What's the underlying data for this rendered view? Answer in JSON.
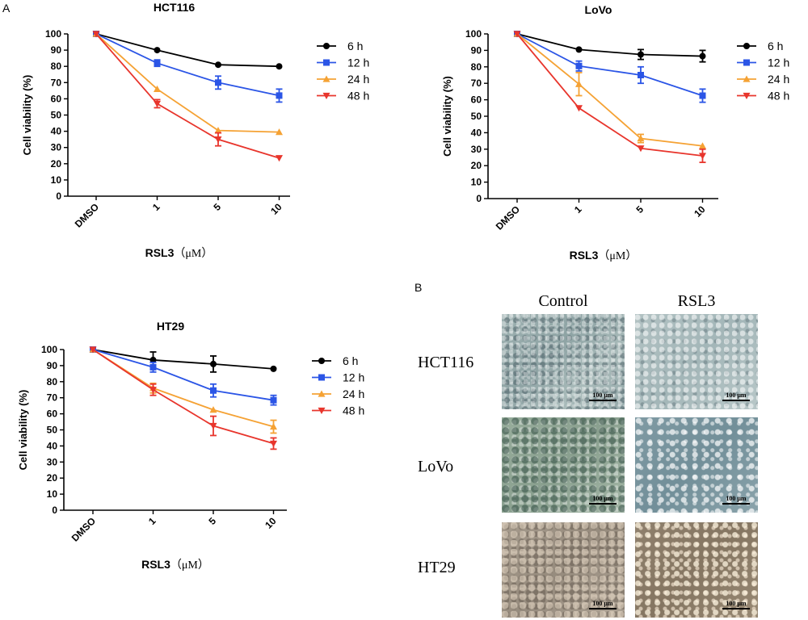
{
  "panel_labels": {
    "a": "A",
    "b": "B"
  },
  "chart_data": [
    {
      "type": "line",
      "title": "HCT116",
      "ylabel": "Cell viability (%)",
      "xlabel": "RSL3",
      "xlabel_unit": "（μM）",
      "categories": [
        "DMSO",
        "1",
        "5",
        "10"
      ],
      "ylim": [
        0,
        100
      ],
      "yticks": [
        0,
        10,
        20,
        30,
        40,
        50,
        60,
        70,
        80,
        90,
        100
      ],
      "series": [
        {
          "name": "6 h",
          "marker": "circle",
          "color": "#000000",
          "values": [
            100,
            90,
            81,
            80
          ],
          "errors": [
            0,
            0,
            0,
            0
          ]
        },
        {
          "name": "12 h",
          "marker": "square",
          "color": "#2b55e6",
          "values": [
            100,
            82,
            70,
            62
          ],
          "errors": [
            0,
            2,
            4,
            4
          ]
        },
        {
          "name": "24 h",
          "marker": "triangle",
          "color": "#f5a234",
          "values": [
            100,
            66,
            40.5,
            39.5
          ],
          "errors": [
            0,
            0,
            0,
            0
          ]
        },
        {
          "name": "48 h",
          "marker": "tri-down",
          "color": "#e8352c",
          "values": [
            100,
            57,
            35,
            23.5
          ],
          "errors": [
            0,
            2.5,
            4,
            0
          ]
        }
      ]
    },
    {
      "type": "line",
      "title": "LoVo",
      "ylabel": "Cell viability (%)",
      "xlabel": "RSL3",
      "xlabel_unit": "（μM）",
      "categories": [
        "DMSO",
        "1",
        "5",
        "10"
      ],
      "ylim": [
        0,
        100
      ],
      "yticks": [
        0,
        10,
        20,
        30,
        40,
        50,
        60,
        70,
        80,
        90,
        100
      ],
      "series": [
        {
          "name": "6 h",
          "marker": "circle",
          "color": "#000000",
          "values": [
            100,
            90.5,
            87.5,
            86.5
          ],
          "errors": [
            0,
            0,
            3,
            3.5
          ]
        },
        {
          "name": "12 h",
          "marker": "square",
          "color": "#2b55e6",
          "values": [
            100,
            80.5,
            75,
            62.5
          ],
          "errors": [
            0,
            3,
            5,
            4
          ]
        },
        {
          "name": "24 h",
          "marker": "triangle",
          "color": "#f5a234",
          "values": [
            100,
            69.5,
            36.5,
            32
          ],
          "errors": [
            0,
            7,
            2.5,
            0
          ]
        },
        {
          "name": "48 h",
          "marker": "tri-down",
          "color": "#e8352c",
          "values": [
            100,
            55,
            30.5,
            26
          ],
          "errors": [
            0,
            0,
            0,
            4
          ]
        }
      ]
    },
    {
      "type": "line",
      "title": "HT29",
      "ylabel": "Cell viability (%)",
      "xlabel": "RSL3",
      "xlabel_unit": "（μM）",
      "categories": [
        "DMSO",
        "1",
        "5",
        "10"
      ],
      "ylim": [
        0,
        100
      ],
      "yticks": [
        0,
        10,
        20,
        30,
        40,
        50,
        60,
        70,
        80,
        90,
        100
      ],
      "series": [
        {
          "name": "6 h",
          "marker": "circle",
          "color": "#000000",
          "values": [
            100,
            93.5,
            91,
            88
          ],
          "errors": [
            0,
            5,
            5,
            0
          ]
        },
        {
          "name": "12 h",
          "marker": "square",
          "color": "#2b55e6",
          "values": [
            100,
            89,
            74.5,
            68.5
          ],
          "errors": [
            0,
            3,
            4,
            3
          ]
        },
        {
          "name": "24 h",
          "marker": "triangle",
          "color": "#f5a234",
          "values": [
            100,
            76,
            62.5,
            52
          ],
          "errors": [
            0,
            3,
            0,
            4
          ]
        },
        {
          "name": "48 h",
          "marker": "tri-down",
          "color": "#e8352c",
          "values": [
            100,
            75,
            52.5,
            41.5
          ],
          "errors": [
            0,
            3.5,
            6,
            3.5
          ]
        }
      ]
    }
  ],
  "micrographs": {
    "columns": [
      "Control",
      "RSL3"
    ],
    "rows": [
      "HCT116",
      "LoVo",
      "HT29"
    ],
    "scale_bar": "100 μm"
  }
}
